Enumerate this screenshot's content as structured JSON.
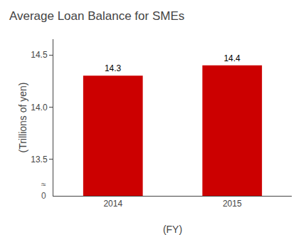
{
  "chart_data": {
    "type": "bar",
    "title": "Average Loan Balance for SMEs",
    "xlabel": "(FY)",
    "ylabel": "(Trillions of yen)",
    "categories": [
      "2014",
      "2015"
    ],
    "values": [
      14.3,
      14.4
    ],
    "data_labels": true,
    "color": "#cc0000",
    "ylim": [
      13.15,
      14.65
    ],
    "yticks": [
      13.5,
      {
        "value": 14.0,
        "label": "14.0"
      },
      14.5
    ],
    "grid": false,
    "annotations": [
      "0",
      "≈"
    ]
  }
}
